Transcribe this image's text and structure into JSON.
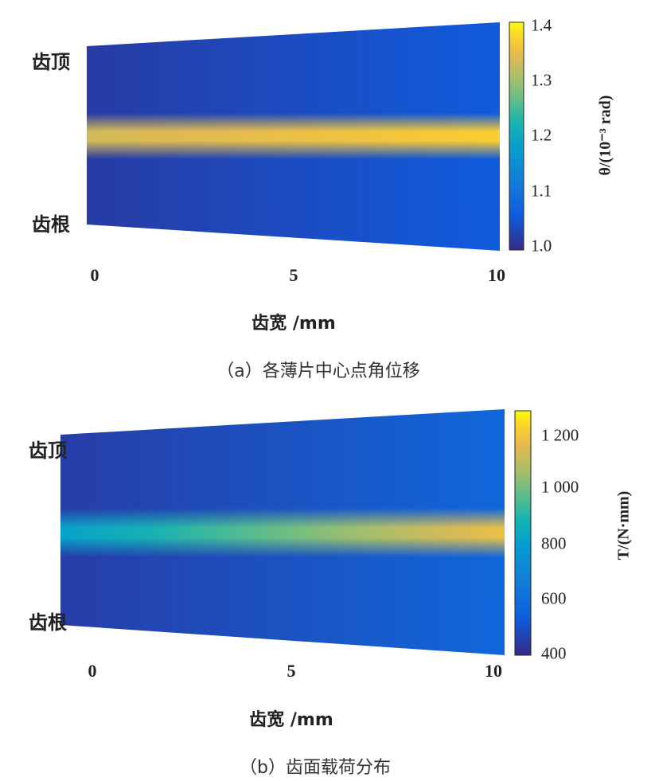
{
  "chart_data": [
    {
      "type": "heatmap",
      "caption": "（a）各薄片中心点角位移",
      "xlabel": "齿宽 /mm",
      "y_top_label": "齿顶",
      "y_bottom_label": "齿根",
      "xticks": [
        "0",
        "5",
        "10"
      ],
      "xlim": [
        0,
        10
      ],
      "colorbar": {
        "label": "θ/(10⁻³ rad)",
        "ticks": [
          "1.4",
          "1.3",
          "1.2",
          "1.1",
          "1.0"
        ],
        "range": [
          1.0,
          1.4
        ],
        "colormap": "parula"
      },
      "field": {
        "background_value_start": 1.02,
        "background_value_end": 1.06,
        "band_value_start": 1.33,
        "band_value_end": 1.37
      }
    },
    {
      "type": "heatmap",
      "caption": "（b）齿面载荷分布",
      "xlabel": "齿宽 /mm",
      "y_top_label": "齿顶",
      "y_bottom_label": "齿根",
      "xticks": [
        "0",
        "5",
        "10"
      ],
      "xlim": [
        0,
        10
      ],
      "colorbar": {
        "label": "T/(N·mm)",
        "ticks": [
          "1 200",
          "1 000",
          "800",
          "600",
          "400"
        ],
        "range": [
          400,
          1290
        ],
        "colormap": "parula"
      },
      "field": {
        "background_value_start": 450,
        "background_value_end": 580,
        "band_value_start": 820,
        "band_value_end": 1180
      }
    }
  ],
  "colors": {
    "parula_dark": "#352a87",
    "parula_blue": "#3d59ef",
    "parula_teal": "#2ab5b5",
    "parula_yellow": "#f9fb0e"
  }
}
